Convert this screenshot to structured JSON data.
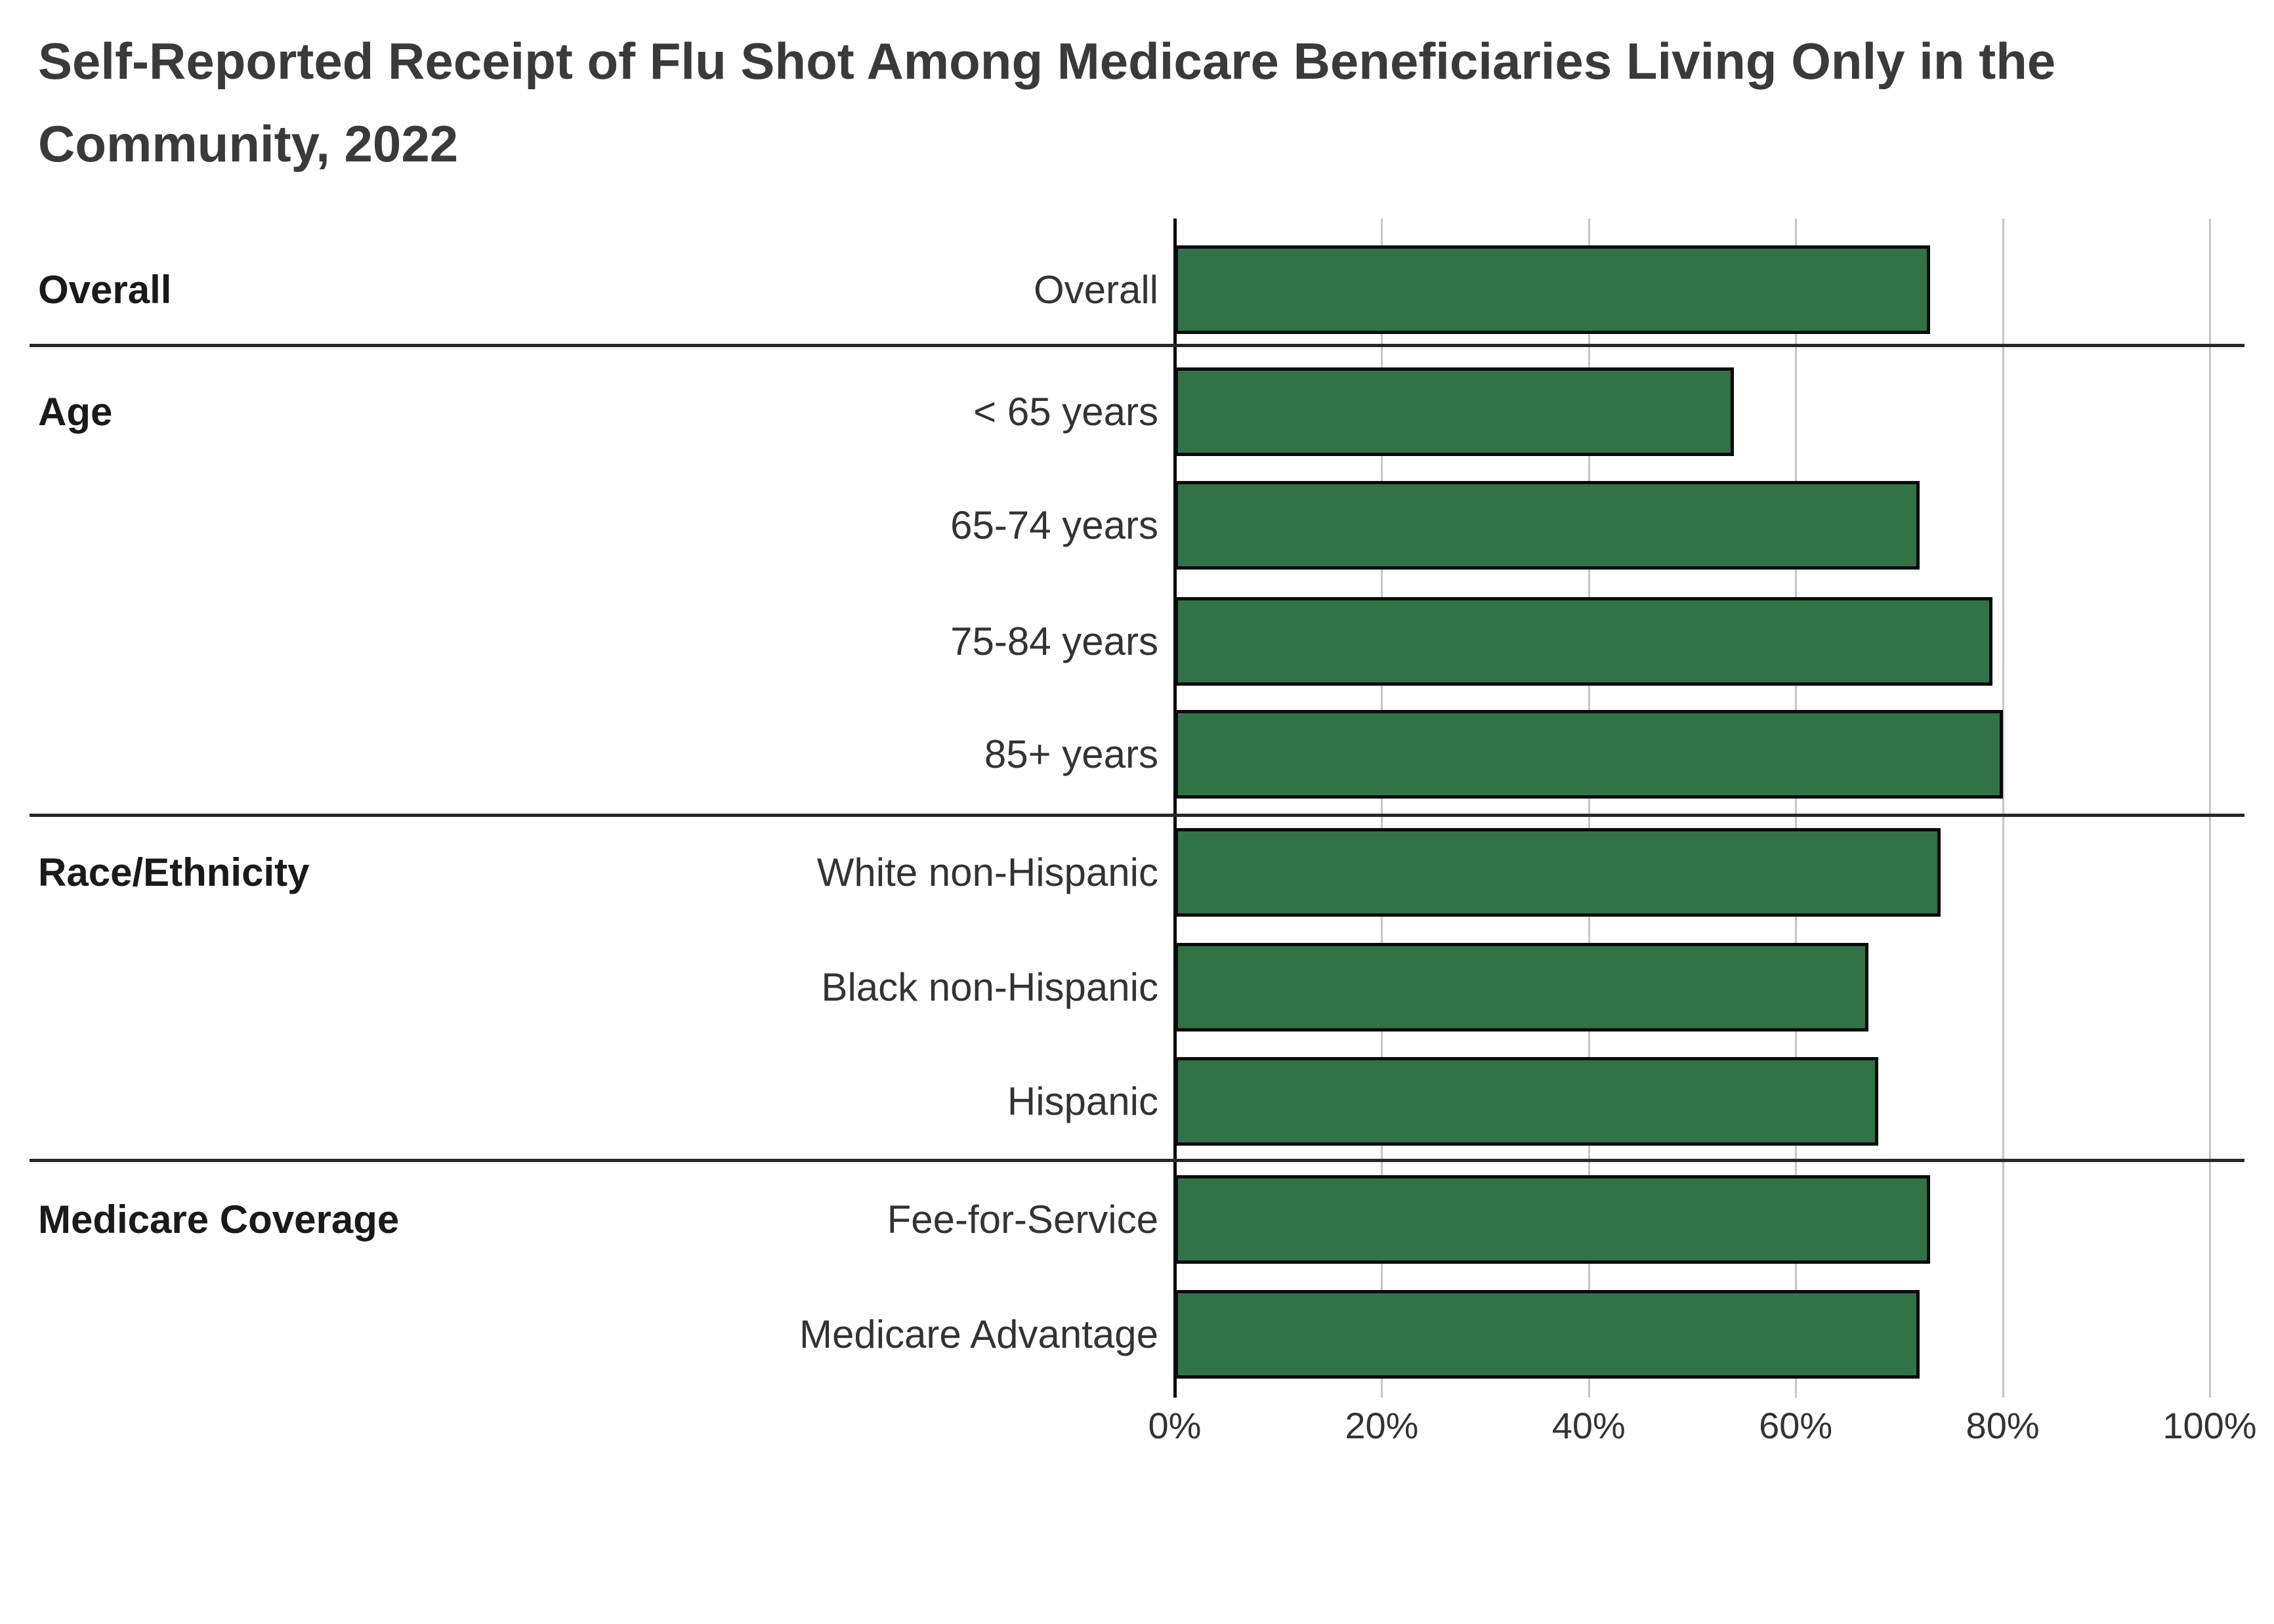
{
  "title": "Self-Reported Receipt of Flu Shot Among Medicare Beneficiaries Living Only in the Community, 2022",
  "chart_data": {
    "type": "bar",
    "orientation": "horizontal",
    "title": "Self-Reported Receipt of Flu Shot Among Medicare Beneficiaries Living Only in the Community, 2022",
    "xlabel": "",
    "ylabel": "",
    "xlim": [
      0,
      100
    ],
    "x_tick_labels": [
      "0%",
      "20%",
      "40%",
      "60%",
      "80%",
      "100%"
    ],
    "x_tick_values": [
      0,
      20,
      40,
      60,
      80,
      100
    ],
    "grid": true,
    "legend": false,
    "bar_color": "#317347",
    "bar_border_color": "#0a0a0a",
    "groups": [
      {
        "label": "Overall",
        "items": [
          {
            "label": "Overall",
            "value": 73
          }
        ]
      },
      {
        "label": "Age",
        "items": [
          {
            "label": "< 65 years",
            "value": 54
          },
          {
            "label": "65-74 years",
            "value": 72
          },
          {
            "label": "75-84 years",
            "value": 79
          },
          {
            "label": "85+ years",
            "value": 80
          }
        ]
      },
      {
        "label": "Race/Ethnicity",
        "items": [
          {
            "label": "White non-Hispanic",
            "value": 74
          },
          {
            "label": "Black non-Hispanic",
            "value": 67
          },
          {
            "label": "Hispanic",
            "value": 68
          }
        ]
      },
      {
        "label": "Medicare Coverage",
        "items": [
          {
            "label": "Fee-for-Service",
            "value": 73
          },
          {
            "label": "Medicare Advantage",
            "value": 72
          }
        ]
      }
    ]
  }
}
